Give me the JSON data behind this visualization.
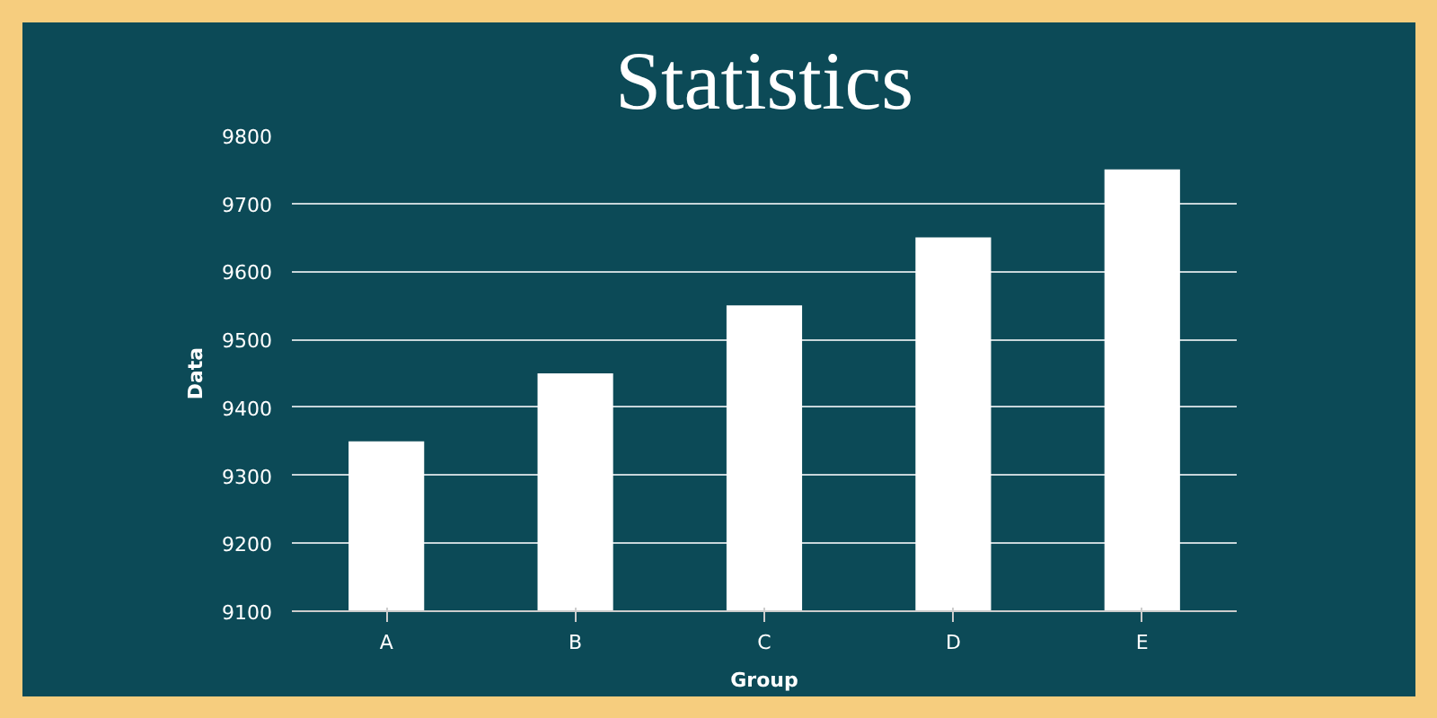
{
  "chart_data": {
    "type": "bar",
    "title": "Statistics",
    "xlabel": "Group",
    "ylabel": "Data",
    "categories": [
      "A",
      "B",
      "C",
      "D",
      "E"
    ],
    "values": [
      9350,
      9450,
      9550,
      9650,
      9750
    ],
    "color": "#ffffff",
    "ylim": [
      9100,
      9800
    ],
    "yticks": [
      9100,
      9200,
      9300,
      9400,
      9500,
      9600,
      9700,
      9800
    ],
    "grid": "y"
  }
}
